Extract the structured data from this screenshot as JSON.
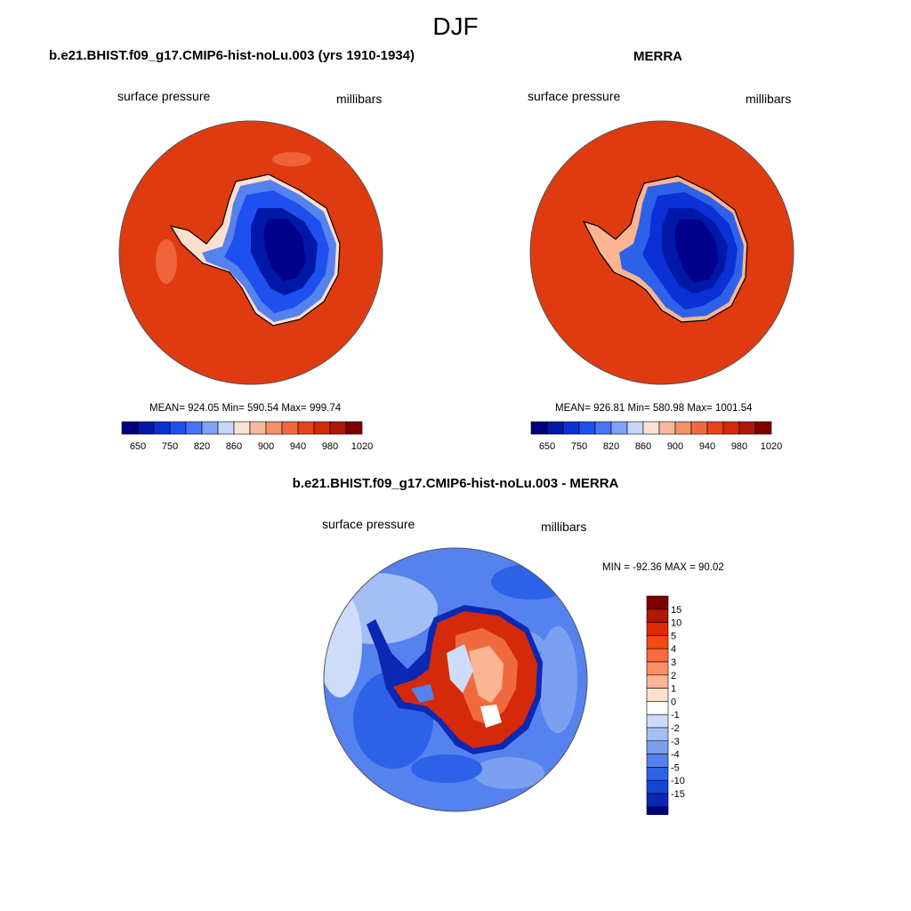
{
  "title": "DJF",
  "panels": [
    {
      "title": "b.e21.BHIST.f09_g17.CMIP6-hist-noLu.003 (yrs 1910-1934)",
      "left_label": "surface pressure",
      "right_label": "millibars",
      "stats": "MEAN= 924.05  Min= 590.54  Max= 999.74"
    },
    {
      "title": "MERRA",
      "left_label": "surface pressure",
      "right_label": "millibars",
      "stats": "MEAN= 926.81  Min= 580.98  Max= 1001.54"
    },
    {
      "title": "b.e21.BHIST.f09_g17.CMIP6-hist-noLu.003 - MERRA",
      "left_label": "surface pressure",
      "right_label": "millibars",
      "stats": "MIN = -92.36 MAX =  90.02"
    }
  ],
  "colorbar_abs": {
    "colors": [
      "#00007f",
      "#0018a8",
      "#0a30d6",
      "#1e50f0",
      "#4a74f5",
      "#7ea2f6",
      "#c5d6f7",
      "#fbe0d4",
      "#f7b99c",
      "#f4906c",
      "#f06a40",
      "#e8441a",
      "#d42a0a",
      "#ad1808",
      "#800000"
    ],
    "tick_labels": [
      "650",
      "750",
      "820",
      "860",
      "900",
      "940",
      "980",
      "1020"
    ]
  },
  "colorbar_diff": {
    "colors": [
      "#7f0000",
      "#b01800",
      "#dd2a00",
      "#f54a10",
      "#f96a3c",
      "#fa8e64",
      "#fbb593",
      "#fde0cc",
      "#ffffff",
      "#cddcf8",
      "#a4bff4",
      "#7ba0f0",
      "#5582ee",
      "#2d62e8",
      "#1444d8",
      "#0a28b4",
      "#000080"
    ],
    "tick_labels": [
      "15",
      "10",
      "5",
      "4",
      "3",
      "2",
      "1",
      "0",
      "-1",
      "-2",
      "-3",
      "-4",
      "-5",
      "-10",
      "-15"
    ]
  },
  "colors": {
    "ocean_high": "#e03a10",
    "antarctica_deep": "#00008a",
    "diff_ocean": "#2f62e6",
    "diff_land": "#d42a0a"
  }
}
